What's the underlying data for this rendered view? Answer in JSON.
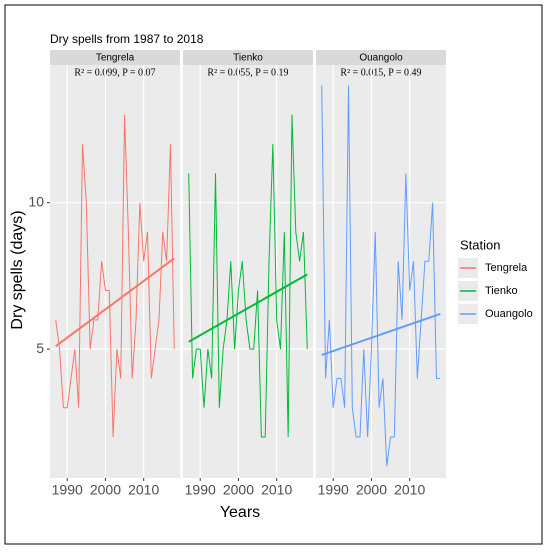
{
  "figure": {
    "title": "Dry spells from 1987 to 2018",
    "xlabel": "Years",
    "ylabel": "Dry spells (days)",
    "legend_title": "Station"
  },
  "chart_data": [
    {
      "type": "line",
      "title": "Tengrela",
      "annotation": "R² = 0.099, P = 0.07",
      "x": [
        1987,
        1988,
        1989,
        1990,
        1991,
        1992,
        1993,
        1994,
        1995,
        1996,
        1997,
        1998,
        1999,
        2000,
        2001,
        2002,
        2003,
        2004,
        2005,
        2006,
        2007,
        2008,
        2009,
        2010,
        2011,
        2012,
        2013,
        2014,
        2015,
        2016,
        2017,
        2018
      ],
      "series": [
        {
          "name": "Tengrela",
          "color": "#F8766D",
          "values": [
            6,
            5,
            3,
            3,
            4,
            5,
            3,
            12,
            10,
            5,
            6,
            6,
            8,
            7,
            7,
            2,
            5,
            4,
            13,
            9,
            4,
            6,
            10,
            8,
            9,
            4,
            5,
            6,
            9,
            8,
            12,
            5
          ]
        }
      ],
      "trend": {
        "x": [
          1987,
          2018
        ],
        "values": [
          5.1,
          8.1
        ]
      },
      "xlim": [
        1985.5,
        2019.5
      ],
      "ylim": [
        0.6,
        14.7
      ],
      "xticks": [
        1990,
        2000,
        2010
      ],
      "yticks": [
        5,
        10
      ],
      "grid": true
    },
    {
      "type": "line",
      "title": "Tienko",
      "annotation": "R² = 0.055, P = 0.19",
      "x": [
        1987,
        1988,
        1989,
        1990,
        1991,
        1992,
        1993,
        1994,
        1995,
        1996,
        1997,
        1998,
        1999,
        2000,
        2001,
        2002,
        2003,
        2004,
        2005,
        2006,
        2007,
        2008,
        2009,
        2010,
        2011,
        2012,
        2013,
        2014,
        2015,
        2016,
        2017,
        2018
      ],
      "series": [
        {
          "name": "Tienko",
          "color": "#00BA38",
          "values": [
            11,
            4,
            5,
            5,
            3,
            5,
            4,
            11,
            3,
            5,
            6,
            8,
            5,
            7,
            8,
            6,
            5,
            5,
            7,
            2,
            2,
            8,
            12,
            6,
            5,
            9,
            2,
            13,
            9,
            8,
            9,
            5
          ]
        }
      ],
      "trend": {
        "x": [
          1987,
          2018
        ],
        "values": [
          5.25,
          7.55
        ]
      },
      "xlim": [
        1985.5,
        2019.5
      ],
      "ylim": [
        0.6,
        14.7
      ],
      "xticks": [
        1990,
        2000,
        2010
      ],
      "yticks": [
        5,
        10
      ],
      "grid": true
    },
    {
      "type": "line",
      "title": "Ouangolo",
      "annotation": "R² = 0.015, P = 0.49",
      "x": [
        1987,
        1988,
        1989,
        1990,
        1991,
        1992,
        1993,
        1994,
        1995,
        1996,
        1997,
        1998,
        1999,
        2000,
        2001,
        2002,
        2003,
        2004,
        2005,
        2006,
        2007,
        2008,
        2009,
        2010,
        2011,
        2012,
        2013,
        2014,
        2015,
        2016,
        2017,
        2018
      ],
      "series": [
        {
          "name": "Ouangolo",
          "color": "#619CFF",
          "values": [
            14,
            4,
            6,
            3,
            4,
            4,
            3,
            14,
            3,
            2,
            2,
            5,
            2,
            5,
            9,
            3,
            4,
            1,
            2,
            2,
            8,
            6,
            11,
            7,
            8,
            4,
            6,
            8,
            8,
            10,
            4,
            4
          ]
        }
      ],
      "trend": {
        "x": [
          1987,
          2018
        ],
        "values": [
          4.8,
          6.2
        ]
      },
      "xlim": [
        1985.5,
        2019.5
      ],
      "ylim": [
        0.6,
        14.7
      ],
      "xticks": [
        1990,
        2000,
        2010
      ],
      "yticks": [
        5,
        10
      ],
      "grid": true
    }
  ]
}
